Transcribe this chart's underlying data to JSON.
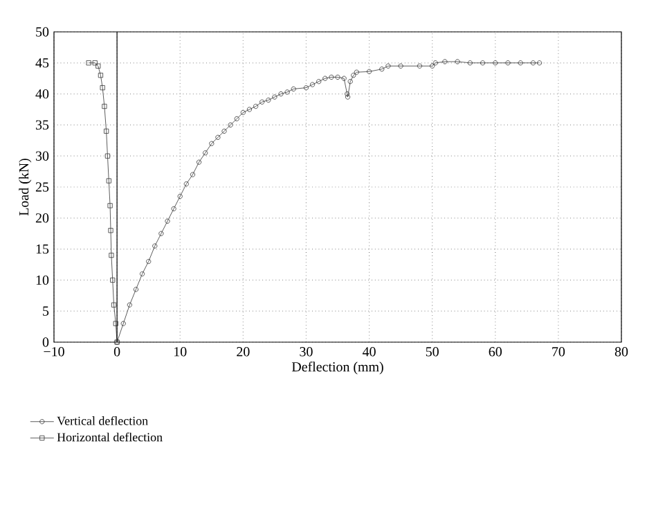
{
  "chart_data": {
    "type": "line",
    "xlabel": "Deflection (mm)",
    "ylabel": "Load (kN)",
    "xlim": [
      -10,
      80
    ],
    "ylim": [
      0,
      50
    ],
    "xticks": [
      {
        "value": -10,
        "label": "−10"
      },
      0,
      10,
      20,
      30,
      40,
      50,
      60,
      70,
      80
    ],
    "yticks": [
      0,
      5,
      10,
      15,
      20,
      25,
      30,
      35,
      40,
      45,
      50
    ],
    "grid": true,
    "legend": "bottom",
    "ref_lines": [
      {
        "axis": "x",
        "value": 0,
        "color": "#000000",
        "line_style": "solid"
      }
    ],
    "series": [
      {
        "name": "Vertical deflection",
        "color": "#333333",
        "marker": "circle",
        "x": [
          0,
          1,
          2,
          3,
          4,
          5,
          6,
          7,
          8,
          9,
          10,
          11,
          12,
          13,
          14,
          15,
          16,
          17,
          18,
          19,
          20,
          21,
          22,
          23,
          24,
          25,
          26,
          27,
          28,
          30,
          31,
          32,
          33,
          34,
          35,
          36,
          36.5,
          36.6,
          37,
          37.5,
          38,
          40,
          42,
          43,
          45,
          48,
          50,
          50.5,
          52,
          54,
          56,
          58,
          60,
          62,
          64,
          66,
          67
        ],
        "values": [
          0,
          3,
          6,
          8.5,
          11,
          13,
          15.5,
          17.5,
          19.5,
          21.5,
          23.5,
          25.5,
          27,
          29,
          30.5,
          32,
          33,
          34,
          35,
          36,
          37,
          37.5,
          38,
          38.7,
          39,
          39.5,
          40,
          40.3,
          40.8,
          41,
          41.5,
          42,
          42.5,
          42.7,
          42.7,
          42.5,
          40,
          39.5,
          42,
          43,
          43.5,
          43.6,
          44,
          44.5,
          44.5,
          44.5,
          44.5,
          45,
          45.2,
          45.2,
          45,
          45,
          45,
          45,
          45,
          45,
          45
        ]
      },
      {
        "name": "Horizontal deflection",
        "color": "#333333",
        "marker": "square",
        "x": [
          0,
          -0.2,
          -0.5,
          -0.7,
          -0.9,
          -1,
          -1.1,
          -1.3,
          -1.5,
          -1.7,
          -2,
          -2.3,
          -2.6,
          -3,
          -3.5,
          -4.5
        ],
        "values": [
          0,
          3,
          6,
          10,
          14,
          18,
          22,
          26,
          30,
          34,
          38,
          41,
          43,
          44.5,
          45,
          45
        ]
      }
    ]
  }
}
